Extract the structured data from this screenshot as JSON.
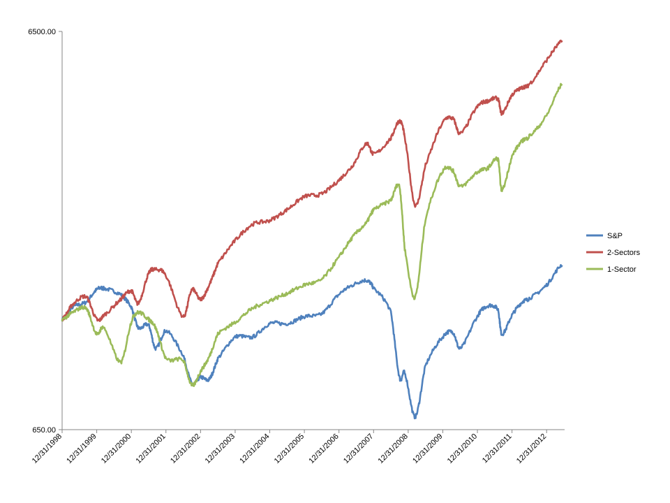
{
  "chart_data": {
    "type": "line",
    "title": "",
    "xlabel": "",
    "ylabel": "",
    "y_scale": "log",
    "ylim": [
      650,
      6500
    ],
    "y_tick_labels": [
      "6500.00",
      "650.00"
    ],
    "x_tick_labels": [
      "12/31/1998",
      "12/31/1999",
      "12/31/2000",
      "12/31/2001",
      "12/31/2002",
      "12/31/2003",
      "12/31/2004",
      "12/31/2005",
      "12/31/2006",
      "12/31/2007",
      "12/31/2008",
      "12/31/2009",
      "12/31/2010",
      "12/31/2011",
      "12/31/2012"
    ],
    "x": [
      1999.0,
      1999.3,
      1999.7,
      2000.0,
      2000.2,
      2000.7,
      2001.0,
      2001.2,
      2001.5,
      2001.7,
      2002.0,
      2002.5,
      2002.75,
      2003.0,
      2003.25,
      2003.5,
      2004.0,
      2004.5,
      2005.0,
      2005.5,
      2006.0,
      2006.5,
      2007.0,
      2007.4,
      2007.8,
      2008.0,
      2008.5,
      2008.75,
      2008.9,
      2009.2,
      2009.5,
      2010.0,
      2010.3,
      2010.5,
      2011.0,
      2011.3,
      2011.6,
      2011.7,
      2012.0,
      2012.3,
      2012.5,
      2013.0,
      2013.45
    ],
    "series": [
      {
        "name": "S&P",
        "color": "#4F81BD",
        "values": [
          1229,
          1320,
          1360,
          1460,
          1470,
          1420,
          1320,
          1170,
          1190,
          1040,
          1150,
          1000,
          850,
          880,
          870,
          980,
          1110,
          1110,
          1200,
          1200,
          1250,
          1270,
          1420,
          1500,
          1540,
          1470,
          1280,
          880,
          900,
          700,
          940,
          1110,
          1140,
          1040,
          1250,
          1330,
          1300,
          1130,
          1260,
          1360,
          1390,
          1500,
          1690
        ]
      },
      {
        "name": "2-Sectors",
        "color": "#C0504D",
        "values": [
          1229,
          1340,
          1400,
          1230,
          1260,
          1380,
          1450,
          1350,
          1600,
          1640,
          1580,
          1250,
          1460,
          1380,
          1500,
          1700,
          1940,
          2130,
          2180,
          2320,
          2500,
          2540,
          2750,
          3000,
          3400,
          3200,
          3500,
          3870,
          3500,
          2380,
          3000,
          3830,
          3920,
          3600,
          4200,
          4350,
          4400,
          4050,
          4500,
          4700,
          4800,
          5500,
          6150
        ]
      },
      {
        "name": "1-Sector",
        "color": "#9BBB59",
        "values": [
          1229,
          1280,
          1310,
          1130,
          1170,
          960,
          1210,
          1280,
          1230,
          1170,
          980,
          970,
          840,
          910,
          990,
          1130,
          1210,
          1310,
          1370,
          1430,
          1500,
          1550,
          1760,
          1980,
          2150,
          2320,
          2450,
          2650,
          1850,
          1400,
          2200,
          2900,
          2900,
          2650,
          2880,
          2950,
          3100,
          2600,
          3150,
          3450,
          3550,
          4000,
          4800
        ]
      }
    ],
    "legend_position": "right",
    "grid": false
  }
}
